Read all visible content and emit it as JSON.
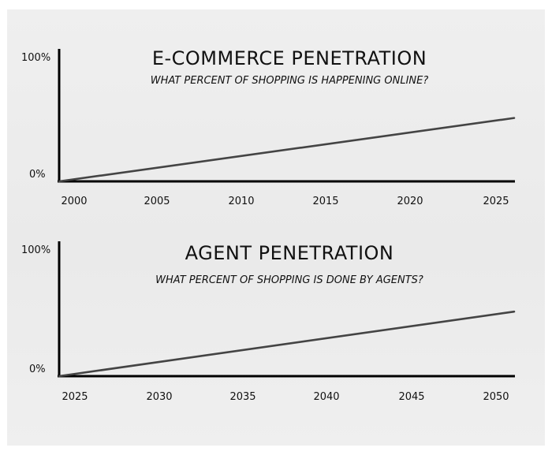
{
  "chart_data": [
    {
      "type": "line",
      "title": "E-COMMERCE PENETRATION",
      "subtitle": "WHAT PERCENT OF SHOPPING IS HAPPENING ONLINE?",
      "y_tick_labels": [
        "100%",
        "0%"
      ],
      "ylim": [
        0,
        100
      ],
      "x_ticks": [
        2000,
        2005,
        2010,
        2015,
        2020,
        2025
      ],
      "x_tick_labels": [
        "2000",
        "2005",
        "2010",
        "2015",
        "2020",
        "2025"
      ],
      "xlim": [
        2000,
        2026
      ],
      "grid": false,
      "series": [
        {
          "x": [
            2000,
            2026
          ],
          "y": [
            0,
            49
          ],
          "color": "#444444"
        }
      ]
    },
    {
      "type": "line",
      "title": "AGENT PENETRATION",
      "subtitle": "WHAT PERCENT OF SHOPPING IS DONE BY AGENTS?",
      "y_tick_labels": [
        "100%",
        "0%"
      ],
      "ylim": [
        0,
        100
      ],
      "x_ticks": [
        2025,
        2030,
        2035,
        2040,
        2045,
        2050
      ],
      "x_tick_labels": [
        "2025",
        "2030",
        "2035",
        "2040",
        "2045",
        "2050"
      ],
      "xlim": [
        2025,
        2051
      ],
      "grid": false,
      "series": [
        {
          "x": [
            2025,
            2051
          ],
          "y": [
            0,
            49
          ],
          "color": "#444444"
        }
      ]
    }
  ]
}
